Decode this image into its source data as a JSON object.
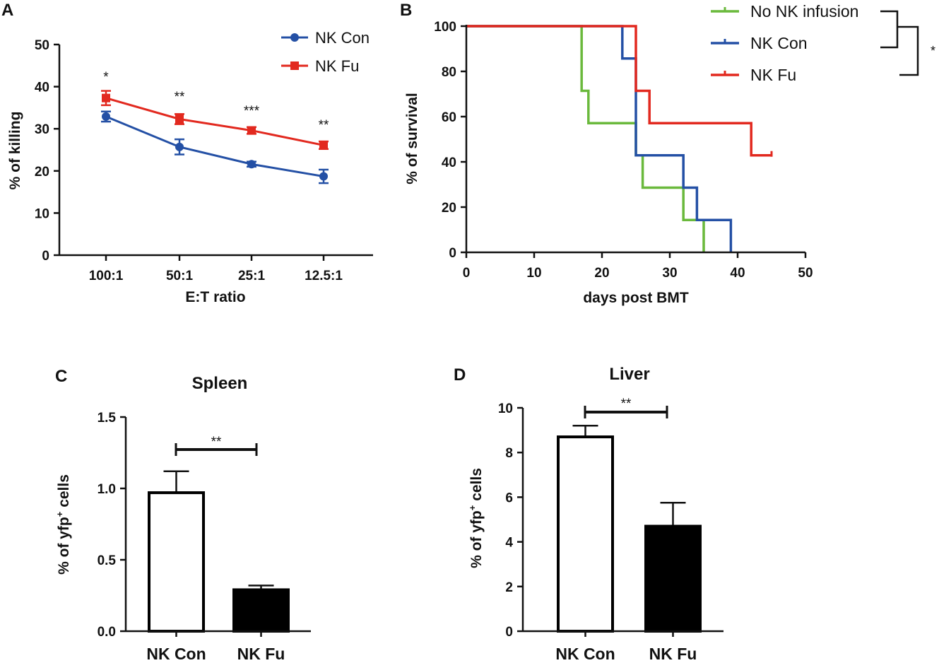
{
  "colors": {
    "blue": "#2450a5",
    "red": "#e2291f",
    "green": "#6ab93c",
    "axis": "#111111",
    "black": "#000000",
    "white": "#ffffff"
  },
  "chart_data": [
    {
      "panel": "A",
      "type": "line",
      "title": "",
      "xlabel": "E:T ratio",
      "ylabel": "% of killing",
      "categories": [
        "100:1",
        "50:1",
        "25:1",
        "12.5:1"
      ],
      "ylim": [
        0,
        50
      ],
      "yticks": [
        "0",
        "10",
        "20",
        "30",
        "40",
        "50"
      ],
      "series": [
        {
          "name": "NK Con",
          "color": "#2450a5",
          "marker": "circle",
          "values": [
            32.9,
            25.7,
            21.6,
            18.7
          ],
          "errors": [
            1.2,
            1.8,
            0.6,
            1.6
          ]
        },
        {
          "name": "NK Fu",
          "color": "#e2291f",
          "marker": "square",
          "values": [
            37.3,
            32.3,
            29.6,
            26.1
          ],
          "errors": [
            1.7,
            1.2,
            0.8,
            0.9
          ]
        }
      ],
      "annotations": [
        "*",
        "**",
        "***",
        "**"
      ],
      "legend": "top-right"
    },
    {
      "panel": "B",
      "type": "line",
      "title": "",
      "xlabel": "days post BMT",
      "ylabel": "% of survival",
      "xlim": [
        0,
        50
      ],
      "ylim": [
        0,
        100
      ],
      "xticks": [
        "0",
        "10",
        "20",
        "30",
        "40",
        "50"
      ],
      "yticks": [
        "0",
        "20",
        "40",
        "60",
        "80",
        "100"
      ],
      "series": [
        {
          "name": "No NK infusion",
          "color": "#6ab93c",
          "steps": [
            [
              0,
              100
            ],
            [
              17,
              100
            ],
            [
              17,
              71.4
            ],
            [
              18,
              71.4
            ],
            [
              18,
              57.1
            ],
            [
              25,
              57.1
            ],
            [
              25,
              42.9
            ],
            [
              26,
              42.9
            ],
            [
              26,
              28.6
            ],
            [
              32,
              28.6
            ],
            [
              32,
              14.3
            ],
            [
              35,
              14.3
            ],
            [
              35,
              0
            ]
          ]
        },
        {
          "name": "NK Con",
          "color": "#2450a5",
          "steps": [
            [
              0,
              100
            ],
            [
              23,
              100
            ],
            [
              23,
              85.7
            ],
            [
              25,
              85.7
            ],
            [
              25,
              42.9
            ],
            [
              32,
              42.9
            ],
            [
              32,
              28.6
            ],
            [
              34,
              28.6
            ],
            [
              34,
              14.3
            ],
            [
              39,
              14.3
            ],
            [
              39,
              0
            ]
          ]
        },
        {
          "name": "NK Fu",
          "color": "#e2291f",
          "steps": [
            [
              0,
              100
            ],
            [
              25,
              100
            ],
            [
              25,
              71.4
            ],
            [
              27,
              71.4
            ],
            [
              27,
              57.1
            ],
            [
              42,
              57.1
            ],
            [
              42,
              42.9
            ],
            [
              45,
              42.9
            ]
          ]
        }
      ],
      "legend": "top-right",
      "significance": "*"
    },
    {
      "panel": "C",
      "type": "bar",
      "title": "Spleen",
      "xlabel": "",
      "ylabel": "% of yfp⁺ cells",
      "ylabel_main": "% of yfp",
      "ylabel_sup": "+",
      "ylabel_tail": " cells",
      "categories": [
        "NK Con",
        "NK Fu"
      ],
      "values": [
        0.97,
        0.29
      ],
      "errors": [
        0.15,
        0.03
      ],
      "fills": [
        "#ffffff",
        "#000000"
      ],
      "ylim": [
        0,
        1.5
      ],
      "yticks": [
        "0.0",
        "0.5",
        "1.0",
        "1.5"
      ],
      "significance": "**"
    },
    {
      "panel": "D",
      "type": "bar",
      "title": "Liver",
      "xlabel": "",
      "ylabel": "% of yfp⁺ cells",
      "ylabel_main": "% of yfp",
      "ylabel_sup": "+",
      "ylabel_tail": " cells",
      "categories": [
        "NK Con",
        "NK Fu"
      ],
      "values": [
        8.7,
        4.7
      ],
      "errors": [
        0.5,
        1.05
      ],
      "fills": [
        "#ffffff",
        "#000000"
      ],
      "ylim": [
        0,
        10
      ],
      "yticks": [
        "0",
        "2",
        "4",
        "6",
        "8",
        "10"
      ],
      "significance": "**"
    }
  ]
}
